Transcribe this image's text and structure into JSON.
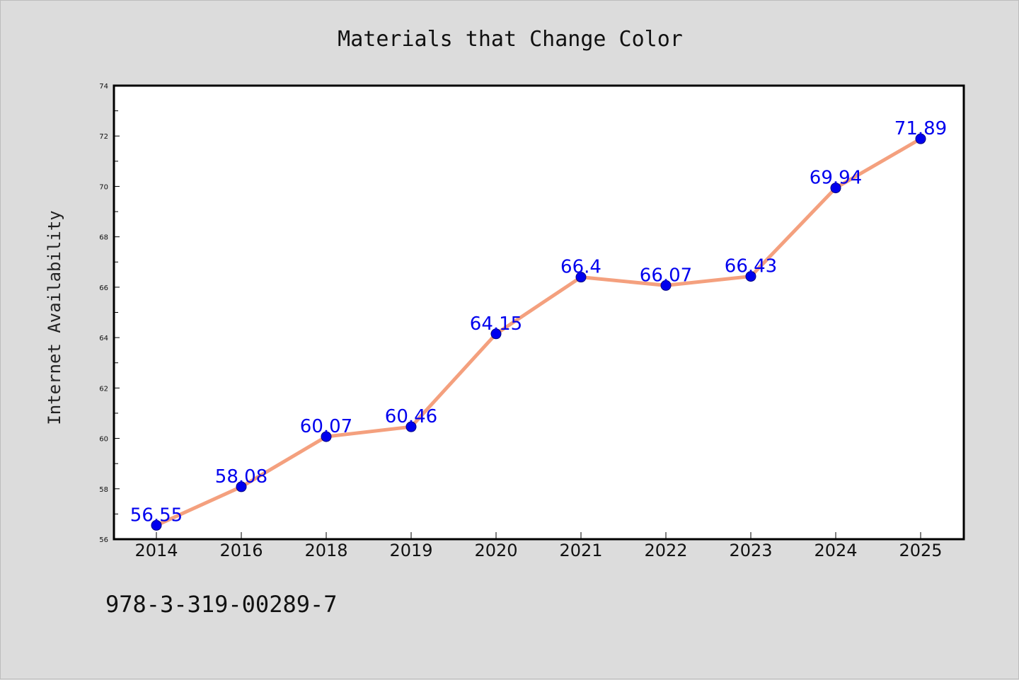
{
  "chart_data": {
    "type": "line",
    "title": "Materials that Change Color",
    "xlabel": "",
    "ylabel": "Internet Availability",
    "categories": [
      "2014",
      "2016",
      "2018",
      "2019",
      "2020",
      "2021",
      "2022",
      "2023",
      "2024",
      "2025"
    ],
    "series": [
      {
        "values": [
          56.55,
          58.08,
          60.07,
          60.46,
          64.15,
          66.4,
          66.07,
          66.43,
          69.94,
          71.89
        ],
        "line_color": "#f4a07e",
        "marker_color": "#0000ee"
      }
    ],
    "data_labels": [
      "56.55",
      "58.08",
      "60.07",
      "60.46",
      "64.15",
      "66.4",
      "66.07",
      "66.43",
      "69.94",
      "71.89"
    ],
    "ylim": [
      56,
      74
    ],
    "yticks": [
      56,
      58,
      60,
      62,
      64,
      66,
      68,
      70,
      72,
      74
    ],
    "grid": false,
    "legend": "none"
  },
  "footer": {
    "isbn": "978-3-319-00289-7"
  }
}
